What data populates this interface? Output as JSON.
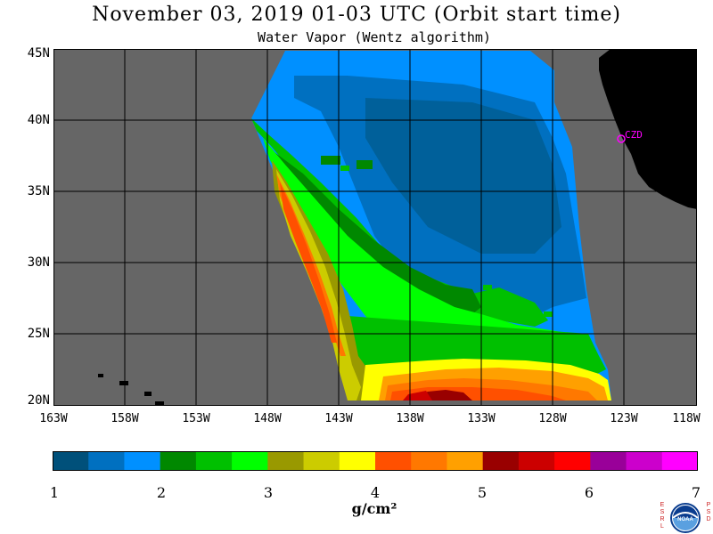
{
  "header": {
    "title": "November 03, 2019  01-03 UTC  (Orbit start time)",
    "subtitle": "Water Vapor (Wentz algorithm)"
  },
  "map": {
    "lat_labels": [
      "45N",
      "40N",
      "35N",
      "30N",
      "25N",
      "20N"
    ],
    "lon_labels": [
      "163W",
      "158W",
      "153W",
      "148W",
      "143W",
      "138W",
      "133W",
      "128W",
      "123W",
      "118W"
    ],
    "station_label": "CZD",
    "colors": {
      "no_data": "#666666",
      "land": "#000000",
      "grid": "#000000",
      "station": "#ff00ff"
    }
  },
  "colorbar": {
    "tick_labels": [
      "1",
      "2",
      "3",
      "4",
      "5",
      "6",
      "7"
    ],
    "unit": "g/cm²",
    "colors": [
      "#00507a",
      "#0070c0",
      "#0090ff",
      "#008800",
      "#00c000",
      "#00ff00",
      "#999900",
      "#cccc00",
      "#ffff00",
      "#ff5000",
      "#ff7800",
      "#ffa000",
      "#990000",
      "#cc0000",
      "#ff0000",
      "#990099",
      "#cc00cc",
      "#ff00ff"
    ]
  },
  "logo": {
    "left_letters": "ESRL",
    "right_letters": "PSD",
    "center_text": "NOAA"
  }
}
